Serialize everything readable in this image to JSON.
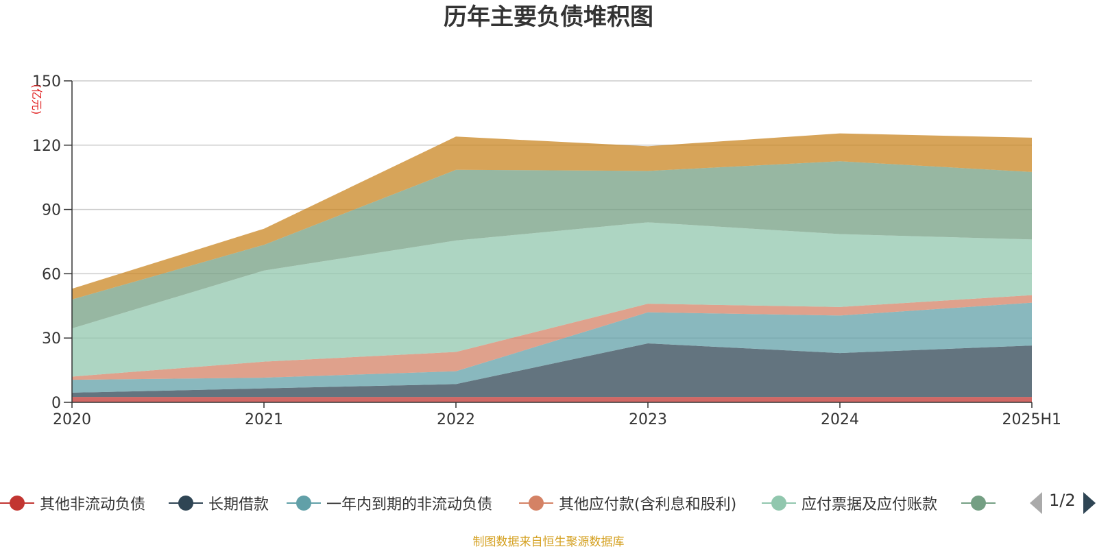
{
  "chart_data": {
    "type": "area",
    "stacked": true,
    "title": "历年主要负债堆积图",
    "ylabel": "(亿元)",
    "xlabel": "",
    "categories": [
      "2020",
      "2021",
      "2022",
      "2023",
      "2024",
      "2025H1"
    ],
    "ylim": [
      0,
      150
    ],
    "yticks": [
      0,
      30,
      60,
      90,
      120,
      150
    ],
    "grid": true,
    "legend_position": "bottom",
    "series": [
      {
        "name": "其他非流动负债",
        "color": "#c23531",
        "values": [
          2.5,
          2.5,
          2.5,
          2.5,
          2.5,
          2.5
        ]
      },
      {
        "name": "长期借款",
        "color": "#2f4554",
        "values": [
          2,
          4,
          6,
          25,
          20.5,
          24
        ]
      },
      {
        "name": "一年内到期的非流动负债",
        "color": "#61a0a8",
        "values": [
          6,
          5,
          6,
          14.5,
          17.5,
          20
        ]
      },
      {
        "name": "其他应付款(含利息和股利)",
        "color": "#d48265",
        "values": [
          1.5,
          7.5,
          9,
          4,
          4,
          3.5
        ]
      },
      {
        "name": "应付票据及应付账款",
        "color": "#91c7ae",
        "values": [
          22.5,
          42.5,
          52,
          38,
          34,
          26
        ]
      },
      {
        "name": "",
        "color": "#749f83",
        "values": [
          13.5,
          12,
          33,
          24,
          34,
          31.5
        ]
      },
      {
        "name": "",
        "color": "#ca8622",
        "values": [
          5,
          7.5,
          15.5,
          11.5,
          13,
          16
        ]
      }
    ]
  },
  "legend": {
    "visible_items": [
      {
        "label": "其他非流动负债",
        "color": "#c23531"
      },
      {
        "label": "长期借款",
        "color": "#2f4554"
      },
      {
        "label": "一年内到期的非流动负债",
        "color": "#61a0a8"
      },
      {
        "label": "其他应付款(含利息和股利)",
        "color": "#d48265"
      },
      {
        "label": "应付票据及应付账款",
        "color": "#91c7ae"
      },
      {
        "label": "",
        "color": "#749f83"
      }
    ],
    "page": "1/2",
    "prev_icon": "triangle-left-icon",
    "next_icon": "triangle-right-icon"
  },
  "footer": {
    "source": "制图数据来自恒生聚源数据库"
  }
}
